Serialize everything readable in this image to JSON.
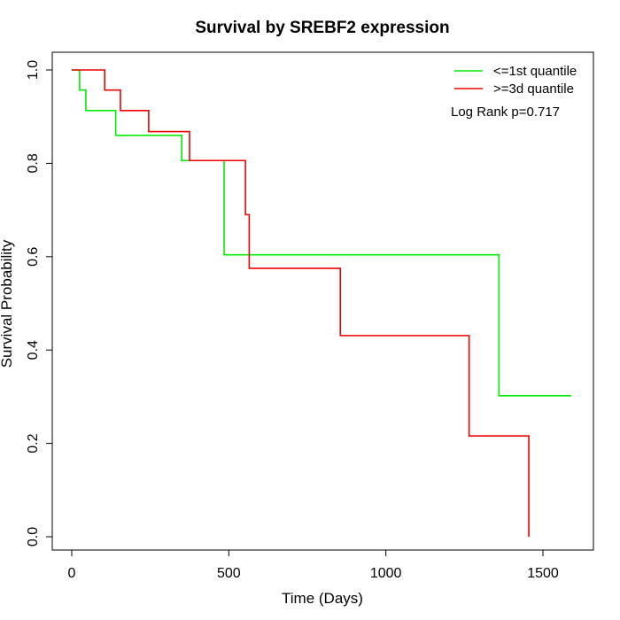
{
  "chart_data": {
    "type": "line",
    "subtype": "kaplan-meier step",
    "title": "Survival by SREBF2 expression",
    "xlabel": "Time (Days)",
    "ylabel": "Survival Probability",
    "xlim": [
      0,
      1600
    ],
    "ylim": [
      0,
      1.0
    ],
    "x_ticks": [
      0,
      500,
      1000,
      1500
    ],
    "y_ticks": [
      "0.0",
      "0.2",
      "0.4",
      "0.6",
      "0.8",
      "1.0"
    ],
    "grid": false,
    "legend_position": "top-right",
    "annotation": "Log Rank p=0.717",
    "series": [
      {
        "name": "<=1st quantile",
        "color": "#00ee00",
        "steps": [
          [
            0,
            1.0
          ],
          [
            25,
            0.957
          ],
          [
            45,
            0.913
          ],
          [
            140,
            0.86
          ],
          [
            350,
            0.806
          ],
          [
            485,
            0.604
          ],
          [
            1360,
            0.302
          ],
          [
            1590,
            0.302
          ]
        ]
      },
      {
        "name": ">=3d quantile",
        "color": "#ee0000",
        "steps": [
          [
            0,
            1.0
          ],
          [
            105,
            0.957
          ],
          [
            155,
            0.913
          ],
          [
            245,
            0.868
          ],
          [
            375,
            0.806
          ],
          [
            553,
            0.69
          ],
          [
            565,
            0.575
          ],
          [
            855,
            0.431
          ],
          [
            1265,
            0.216
          ],
          [
            1455,
            0.0
          ]
        ]
      }
    ]
  }
}
